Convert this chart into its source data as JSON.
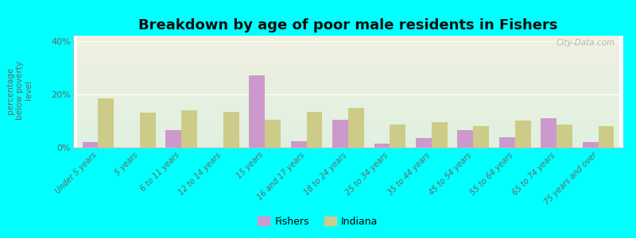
{
  "title": "Breakdown by age of poor male residents in Fishers",
  "ylabel": "percentage\nbelow poverty\nlevel",
  "categories": [
    "Under 5 years",
    "5 years",
    "6 to 11 years",
    "12 to 14 years",
    "15 years",
    "16 and 17 years",
    "18 to 24 years",
    "25 to 34 years",
    "35 to 44 years",
    "45 to 54 years",
    "55 to 64 years",
    "65 to 74 years",
    "75 years and over"
  ],
  "fishers": [
    2.0,
    0.0,
    6.5,
    0.0,
    27.0,
    2.5,
    10.5,
    1.5,
    3.5,
    6.5,
    4.0,
    11.0,
    2.0
  ],
  "indiana": [
    18.5,
    13.0,
    14.0,
    13.5,
    10.5,
    13.5,
    15.0,
    8.5,
    9.5,
    8.0,
    10.0,
    8.5,
    8.0
  ],
  "fishers_color": "#cc99cc",
  "indiana_color": "#cccc88",
  "background_color": "#00ffff",
  "plot_bg_top": "#f0f0e0",
  "plot_bg_bottom": "#e0f0e0",
  "ylim": [
    0,
    42
  ],
  "yticks": [
    0,
    20,
    40
  ],
  "ytick_labels": [
    "0%",
    "20%",
    "40%"
  ],
  "bar_width": 0.38,
  "title_fontsize": 13,
  "watermark": "City-Data.com"
}
